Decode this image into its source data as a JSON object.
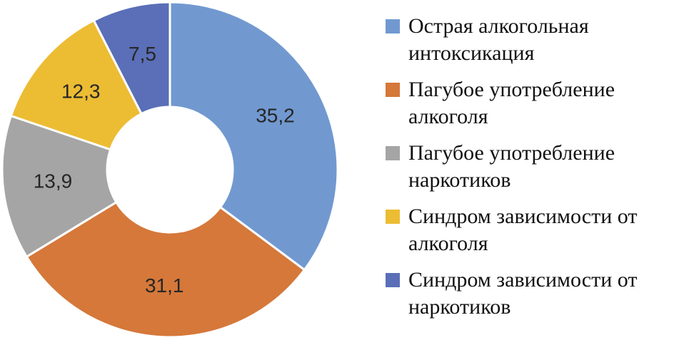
{
  "chart_data": {
    "type": "donut",
    "categories": [
      "Острая алкогольная интоксикация",
      "Пагубое употребление алкоголя",
      "Пагубое употребление наркотиков",
      "Синдром зависимости от алкоголя",
      "Синдром зависимости от наркотиков"
    ],
    "values": [
      35.2,
      31.1,
      13.9,
      12.3,
      7.5
    ],
    "value_labels": [
      "35,2",
      "31,1",
      "13,9",
      "12,3",
      "7,5"
    ],
    "colors": [
      "#7199d0",
      "#d5783a",
      "#a5a5a5",
      "#ecbc33",
      "#5a6fb7"
    ],
    "legend": "right"
  }
}
